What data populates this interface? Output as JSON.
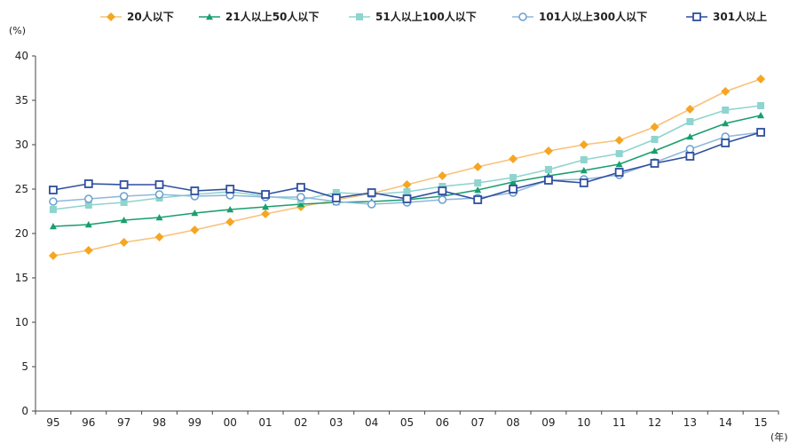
{
  "chart_data": {
    "type": "line",
    "ylabel": "(%)",
    "xlabel": "(年)",
    "ylim": [
      0,
      40
    ],
    "yticks": [
      "0",
      "5",
      "10",
      "15",
      "20",
      "25",
      "30",
      "35",
      "40"
    ],
    "categories": [
      "95",
      "96",
      "97",
      "98",
      "99",
      "00",
      "01",
      "02",
      "03",
      "04",
      "05",
      "06",
      "07",
      "08",
      "09",
      "10",
      "11",
      "12",
      "13",
      "14",
      "15"
    ],
    "grid": false,
    "legend_position": "top",
    "series": [
      {
        "name": "20人以下",
        "color": "#f5a623",
        "line_color": "#f8c27a",
        "marker": "diamond",
        "values": [
          17.5,
          18.1,
          19.0,
          19.6,
          20.4,
          21.3,
          22.2,
          23.0,
          23.8,
          24.5,
          25.5,
          26.5,
          27.5,
          28.4,
          29.3,
          30.0,
          30.5,
          32.0,
          34.0,
          36.0,
          37.4
        ]
      },
      {
        "name": "21人以上50人以下",
        "color": "#1a9e6e",
        "line_color": "#1a9e6e",
        "marker": "triangle",
        "values": [
          20.8,
          21.0,
          21.5,
          21.8,
          22.3,
          22.7,
          23.0,
          23.3,
          23.5,
          23.6,
          23.8,
          24.2,
          24.9,
          25.8,
          26.5,
          27.1,
          27.8,
          29.3,
          30.9,
          32.4,
          33.3
        ]
      },
      {
        "name": "51人以上100人以下",
        "color": "#8fd4cf",
        "line_color": "#8fd4cf",
        "marker": "square",
        "values": [
          22.7,
          23.2,
          23.5,
          24.0,
          24.4,
          24.7,
          24.2,
          23.8,
          24.6,
          24.4,
          24.7,
          25.3,
          25.7,
          26.3,
          27.2,
          28.3,
          29.0,
          30.6,
          32.6,
          33.9,
          34.4
        ]
      },
      {
        "name": "101人以上300人以下",
        "color": "#6a9fd0",
        "line_color": "#8fb7dd",
        "marker": "circle-open",
        "values": [
          23.6,
          23.9,
          24.2,
          24.4,
          24.2,
          24.3,
          24.1,
          24.1,
          23.6,
          23.3,
          23.5,
          23.8,
          24.0,
          24.6,
          26.0,
          26.1,
          26.6,
          28.0,
          29.5,
          30.9,
          31.4
        ]
      },
      {
        "name": "301人以上",
        "color": "#2f4f9e",
        "line_color": "#2f4f9e",
        "marker": "square-open",
        "values": [
          24.9,
          25.6,
          25.5,
          25.5,
          24.8,
          25.0,
          24.4,
          25.2,
          24.0,
          24.6,
          23.9,
          24.8,
          23.8,
          25.0,
          26.0,
          25.7,
          26.9,
          27.9,
          28.7,
          30.2,
          31.4
        ]
      }
    ]
  }
}
